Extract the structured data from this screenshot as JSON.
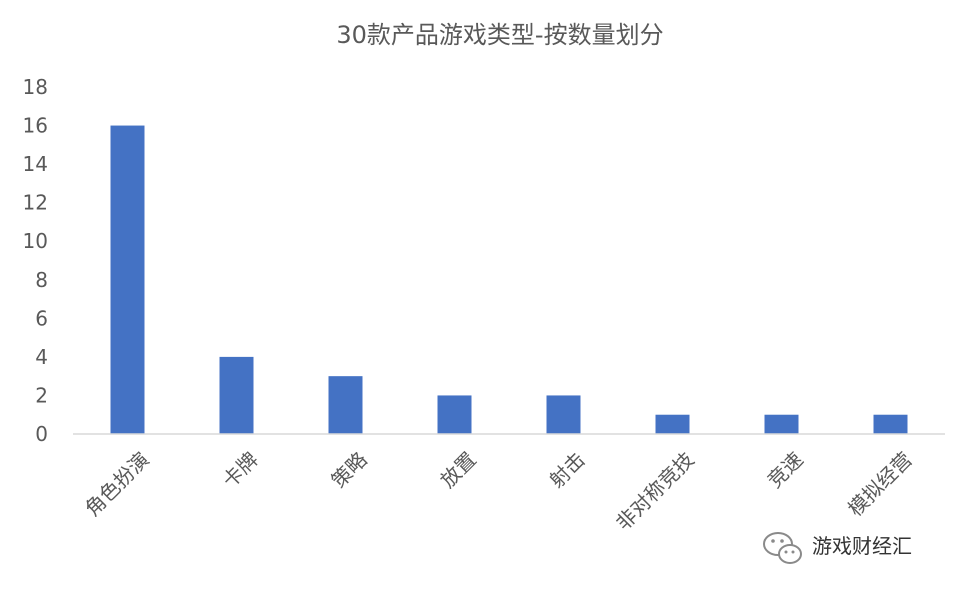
{
  "chart_data": {
    "type": "bar",
    "title": "30款产品游戏类型-按数量划分",
    "xlabel": "",
    "ylabel": "",
    "ylim": [
      0,
      18
    ],
    "yticks": [
      0,
      2,
      4,
      6,
      8,
      10,
      12,
      14,
      16,
      18
    ],
    "grid": false,
    "bar_color": "#4472C4",
    "categories": [
      "角色扮演",
      "卡牌",
      "策略",
      "放置",
      "射击",
      "非对称竞技",
      "竞速",
      "模拟经营"
    ],
    "values": [
      16,
      4,
      3,
      2,
      2,
      1,
      1,
      1
    ]
  },
  "watermark": {
    "text": "游戏财经汇",
    "icon": "wechat-icon"
  }
}
